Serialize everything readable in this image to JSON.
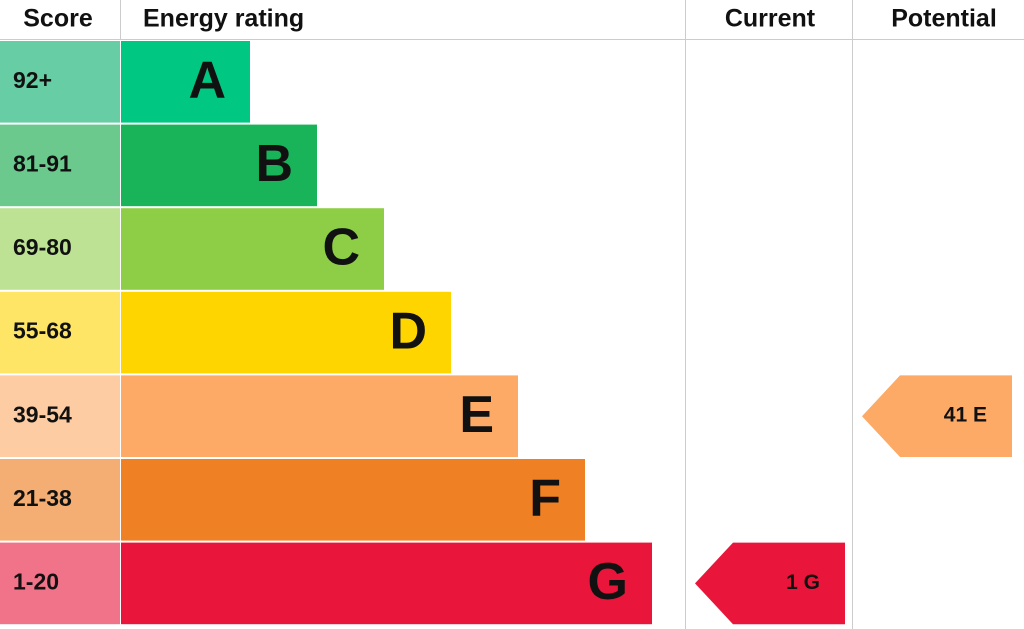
{
  "header": {
    "score": "Score",
    "rating": "Energy rating",
    "current": "Current",
    "potential": "Potential"
  },
  "rows": [
    {
      "score": "92+",
      "band": "A",
      "color": "#00c781",
      "tint": "#66cda5"
    },
    {
      "score": "81-91",
      "band": "B",
      "color": "#19b459",
      "tint": "#6cc98e"
    },
    {
      "score": "69-80",
      "band": "C",
      "color": "#8dce46",
      "tint": "#bde294"
    },
    {
      "score": "55-68",
      "band": "D",
      "color": "#ffd500",
      "tint": "#ffe566"
    },
    {
      "score": "39-54",
      "band": "E",
      "color": "#fcaa65",
      "tint": "#fdcca3",
      "potential": "41 E"
    },
    {
      "score": "21-38",
      "band": "F",
      "color": "#ef8023",
      "tint": "#f4ad72"
    },
    {
      "score": "1-20",
      "band": "G",
      "color": "#e9153b",
      "tint": "#f07389",
      "current": "1 G"
    }
  ]
}
